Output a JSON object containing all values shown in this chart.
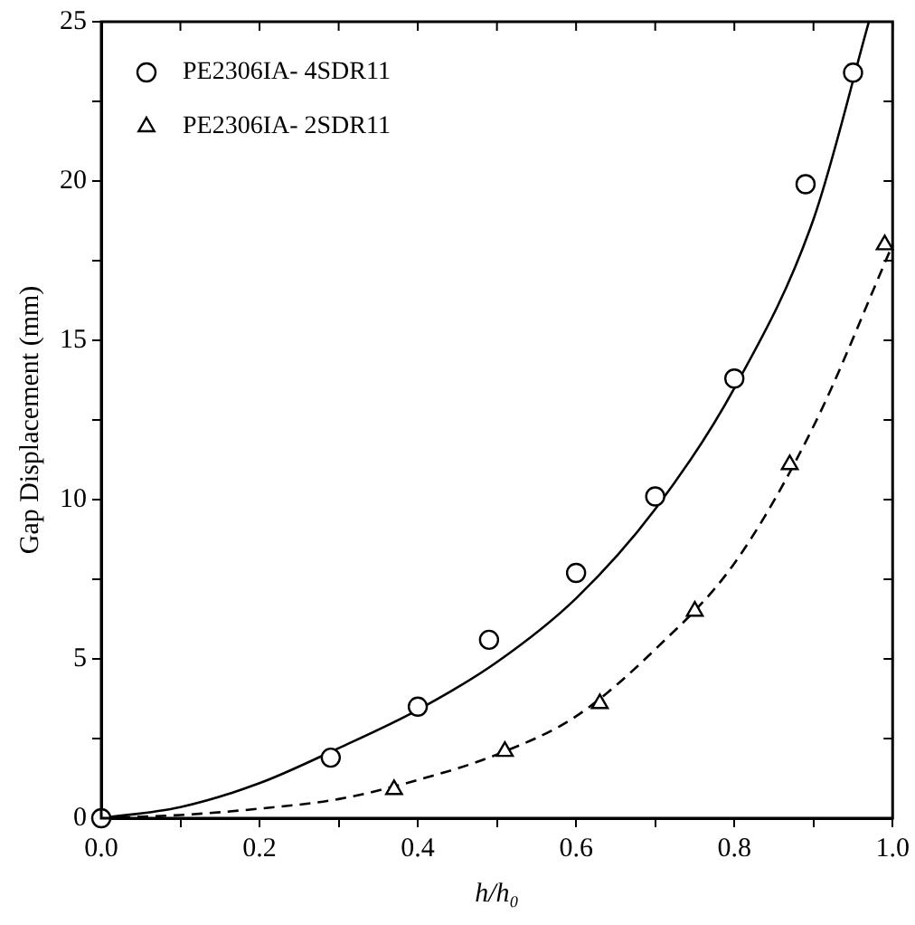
{
  "chart_data": {
    "type": "scatter",
    "xlabel": "h/h₀",
    "ylabel": "Gap Displacement (mm)",
    "xlim": [
      0,
      1
    ],
    "ylim": [
      0,
      25
    ],
    "xticks": [
      {
        "value": 0,
        "label": "0.0"
      },
      {
        "value": 0.1,
        "label": null
      },
      {
        "value": 0.2,
        "label": "0.2"
      },
      {
        "value": 0.3,
        "label": null
      },
      {
        "value": 0.4,
        "label": "0.4"
      },
      {
        "value": 0.5,
        "label": null
      },
      {
        "value": 0.6,
        "label": "0.6"
      },
      {
        "value": 0.7,
        "label": null
      },
      {
        "value": 0.8,
        "label": "0.8"
      },
      {
        "value": 0.9,
        "label": null
      },
      {
        "value": 1,
        "label": "1.0"
      }
    ],
    "yticks": [
      0,
      {
        "value": 2.5,
        "label": null
      },
      5,
      {
        "value": 7.5,
        "label": null
      },
      10,
      {
        "value": 12.5,
        "label": null
      },
      15,
      {
        "value": 17.5,
        "label": null
      },
      20,
      {
        "value": 22.5,
        "label": null
      },
      25
    ],
    "grid": false,
    "legend": "top left",
    "series": [
      {
        "name": "PE2306IA- 4SDR11",
        "color": "#000000",
        "marker": "circle",
        "x": [
          0,
          0.29,
          0.4,
          0.49,
          0.6,
          0.7,
          0.8,
          0.89,
          0.95
        ],
        "values": [
          0,
          1.9,
          3.5,
          5.6,
          7.7,
          10.1,
          13.8,
          19.9,
          23.4
        ]
      },
      {
        "name": "PE2306IA- 2SDR11",
        "color": "#000000",
        "marker": "triangle",
        "x": [
          0.37,
          0.51,
          0.63,
          0.75,
          0.87,
          0.99
        ],
        "values": [
          0.9,
          2.1,
          3.6,
          6.5,
          11.1,
          18.0
        ]
      },
      {
        "type": "line",
        "color": "#000000",
        "marker": "none",
        "line_style": "solid",
        "x": [
          0,
          0.1,
          0.2,
          0.3,
          0.4,
          0.5,
          0.6,
          0.7,
          0.8,
          0.9,
          0.97
        ],
        "values": [
          0,
          0.35,
          1.1,
          2.2,
          3.4,
          4.9,
          6.9,
          9.7,
          13.5,
          18.8,
          25
        ]
      },
      {
        "type": "line",
        "color": "#000000",
        "marker": "none",
        "line_style": "dashed",
        "x": [
          0,
          0.1,
          0.2,
          0.3,
          0.4,
          0.5,
          0.6,
          0.7,
          0.8,
          0.9,
          1.0
        ],
        "values": [
          0,
          0.1,
          0.3,
          0.6,
          1.2,
          2.0,
          3.2,
          5.3,
          8.0,
          12.3,
          18.0
        ]
      }
    ]
  }
}
